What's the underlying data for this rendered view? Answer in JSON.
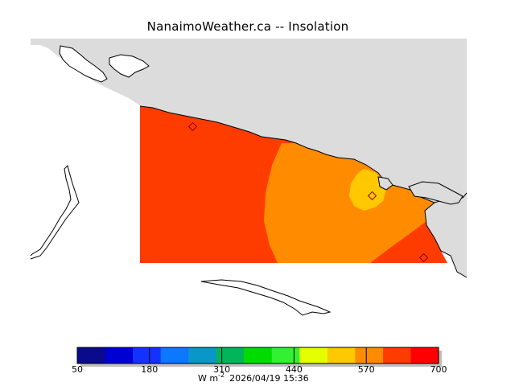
{
  "title": "NanaimoWeather.ca -- Insolation",
  "colorbar": {
    "colors": [
      "#0a0a8c",
      "#0000d2",
      "#1432ff",
      "#0a78ff",
      "#0a96c8",
      "#00b45a",
      "#00dc00",
      "#32f032",
      "#e6ff00",
      "#ffc800",
      "#ff8c00",
      "#ff3c00",
      "#ff0000"
    ],
    "ticks": [
      "50",
      "180",
      "310",
      "440",
      "570",
      "700"
    ],
    "units_prefix": "W m",
    "units_exp": "-2",
    "timestamp": "2026/04/19 15:36"
  },
  "map": {
    "land_color": "#dcdcdc",
    "fill_colors": {
      "level_650": "#ff3c00",
      "level_600": "#ff8c00",
      "level_550": "#ffc800"
    }
  }
}
